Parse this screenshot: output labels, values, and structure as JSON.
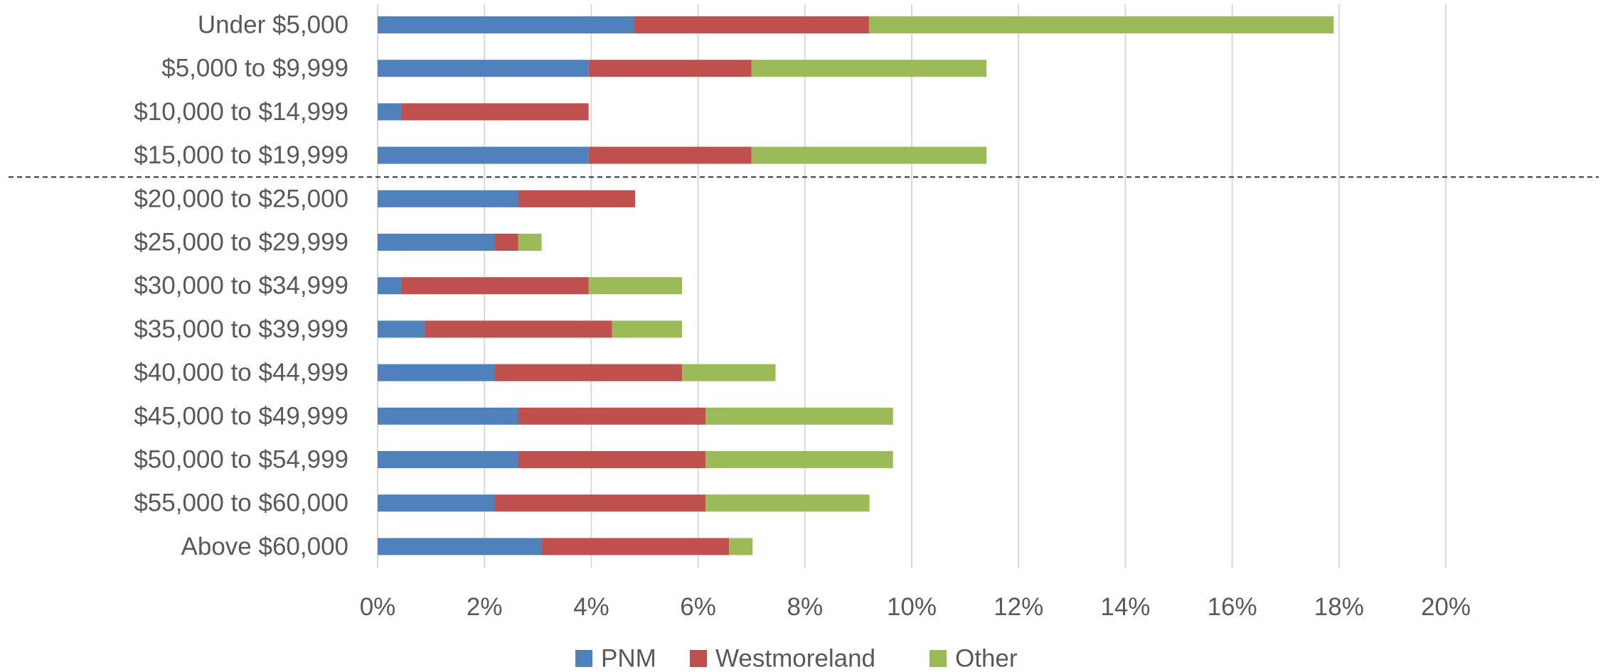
{
  "chart_data": {
    "type": "bar",
    "orientation": "horizontal",
    "stacked": true,
    "categories": [
      "Under $5,000",
      "$5,000 to $9,999",
      "$10,000 to $14,999",
      "$15,000 to $19,999",
      "$20,000 to $25,000",
      "$25,000 to $29,999",
      "$30,000 to $34,999",
      "$35,000 to $39,999",
      "$40,000 to $44,999",
      "$45,000 to $49,999",
      "$50,000 to $54,999",
      "$55,000 to $60,000",
      "Above $60,000"
    ],
    "series": [
      {
        "name": "PNM",
        "color": "#4f81bd",
        "values": [
          4.8,
          3.95,
          0.44,
          3.95,
          2.63,
          2.19,
          0.44,
          0.88,
          2.19,
          2.63,
          2.63,
          2.19,
          3.07
        ]
      },
      {
        "name": "Westmoreland",
        "color": "#c0504d",
        "values": [
          4.4,
          3.05,
          3.51,
          3.05,
          2.19,
          0.44,
          3.51,
          3.51,
          3.51,
          3.51,
          3.51,
          3.95,
          3.51
        ]
      },
      {
        "name": "Other",
        "color": "#9bbb59",
        "values": [
          8.7,
          4.4,
          0,
          4.4,
          0,
          0.44,
          1.75,
          1.31,
          1.75,
          3.51,
          3.51,
          3.07,
          0.44
        ]
      }
    ],
    "xlim": [
      0,
      20
    ],
    "xticks": [
      "0%",
      "2%",
      "4%",
      "6%",
      "8%",
      "10%",
      "12%",
      "14%",
      "16%",
      "18%",
      "20%"
    ],
    "grid": true,
    "legend_position": "bottom",
    "title": "",
    "xlabel": "",
    "ylabel": "",
    "annotations": [
      {
        "type": "dashed-line",
        "between": [
          "$15,000 to $19,999",
          "$20,000 to $25,000"
        ]
      }
    ]
  }
}
